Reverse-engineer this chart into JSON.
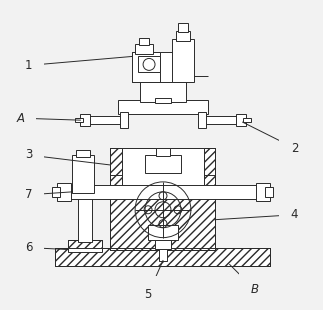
{
  "bg_color": "#f2f2f2",
  "line_color": "#2a2a2a",
  "white": "#ffffff",
  "gray": "#cccccc",
  "label_fontsize": 8.5
}
